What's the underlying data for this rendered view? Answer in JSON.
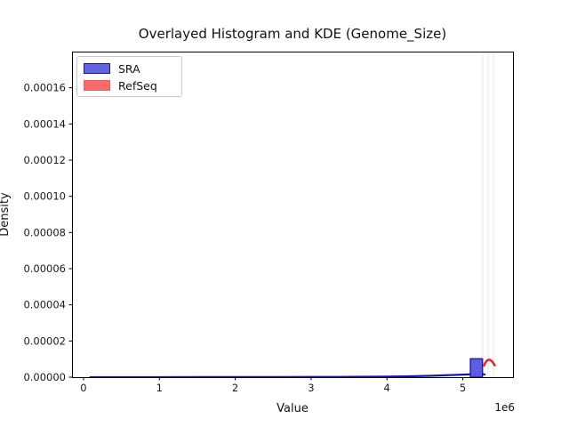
{
  "title": "Overlayed Histogram and KDE (Genome_Size)",
  "xlabel": "Value",
  "ylabel": "Density",
  "offset_text": "1e6",
  "legend": {
    "items": [
      {
        "label": "SRA",
        "fill": "#6363e6",
        "edge": "#17178f"
      },
      {
        "label": "RefSeq",
        "fill": "#f76b6b",
        "edge": "#f25c5c"
      }
    ]
  },
  "colors": {
    "sra_bar_fill": "#5e5ee4",
    "sra_bar_edge": "#17178f",
    "sra_kde_line": "#1616ae",
    "refseq_kde_line": "#de2b2b",
    "refseq_faint_bar": "#f8f1f1",
    "axis": "#000000",
    "tick_text": "#1a1a1a"
  },
  "chart_data": {
    "type": "histogram+kde overlay",
    "title": "Overlayed Histogram and KDE (Genome_Size)",
    "xlabel": "Value",
    "ylabel": "Density",
    "x_scale_note": "x axis values are in units of 1e6",
    "xlim": [
      -152000,
      5662000
    ],
    "ylim": [
      0,
      0.00018
    ],
    "grid": false,
    "legend_position": "upper left",
    "x_ticks": [
      0,
      1000000,
      2000000,
      3000000,
      4000000,
      5000000
    ],
    "x_tick_labels": [
      "0",
      "1",
      "2",
      "3",
      "4",
      "5"
    ],
    "y_ticks": [
      0,
      2e-05,
      4e-05,
      6e-05,
      8e-05,
      0.0001,
      0.00012,
      0.00014,
      0.00016
    ],
    "y_tick_labels": [
      "0.00000",
      "0.00002",
      "0.00004",
      "0.00006",
      "0.00008",
      "0.00010",
      "0.00012",
      "0.00014",
      "0.00016"
    ],
    "series": [
      {
        "name": "SRA",
        "type": "histogram",
        "bars": [
          {
            "x0": 5100000,
            "x1": 5260000,
            "density": 1.02e-05
          }
        ]
      },
      {
        "name": "SRA",
        "type": "kde",
        "points": [
          [
            90000,
            2e-08
          ],
          [
            500000,
            3e-08
          ],
          [
            1000000,
            4e-08
          ],
          [
            1500000,
            5e-08
          ],
          [
            2000000,
            6e-08
          ],
          [
            2500000,
            8e-08
          ],
          [
            3000000,
            1.2e-07
          ],
          [
            3500000,
            1.8e-07
          ],
          [
            4000000,
            3e-07
          ],
          [
            4300000,
            5e-07
          ],
          [
            4600000,
            8e-07
          ],
          [
            4800000,
            1.1e-06
          ],
          [
            5000000,
            1.4e-06
          ],
          [
            5100000,
            1.6e-06
          ],
          [
            5200000,
            1.78e-06
          ],
          [
            5260000,
            1.7e-06
          ],
          [
            5290000,
            1.5e-06
          ]
        ]
      },
      {
        "name": "RefSeq",
        "type": "kde",
        "points": [
          [
            5281000,
            6.4e-06
          ],
          [
            5345000,
            9.6e-06
          ],
          [
            5421000,
            6.6e-06
          ]
        ]
      },
      {
        "name": "RefSeq",
        "type": "histogram-faint-clipped",
        "bar_centers_x": [
          5260000,
          5335000,
          5405000
        ]
      }
    ]
  }
}
